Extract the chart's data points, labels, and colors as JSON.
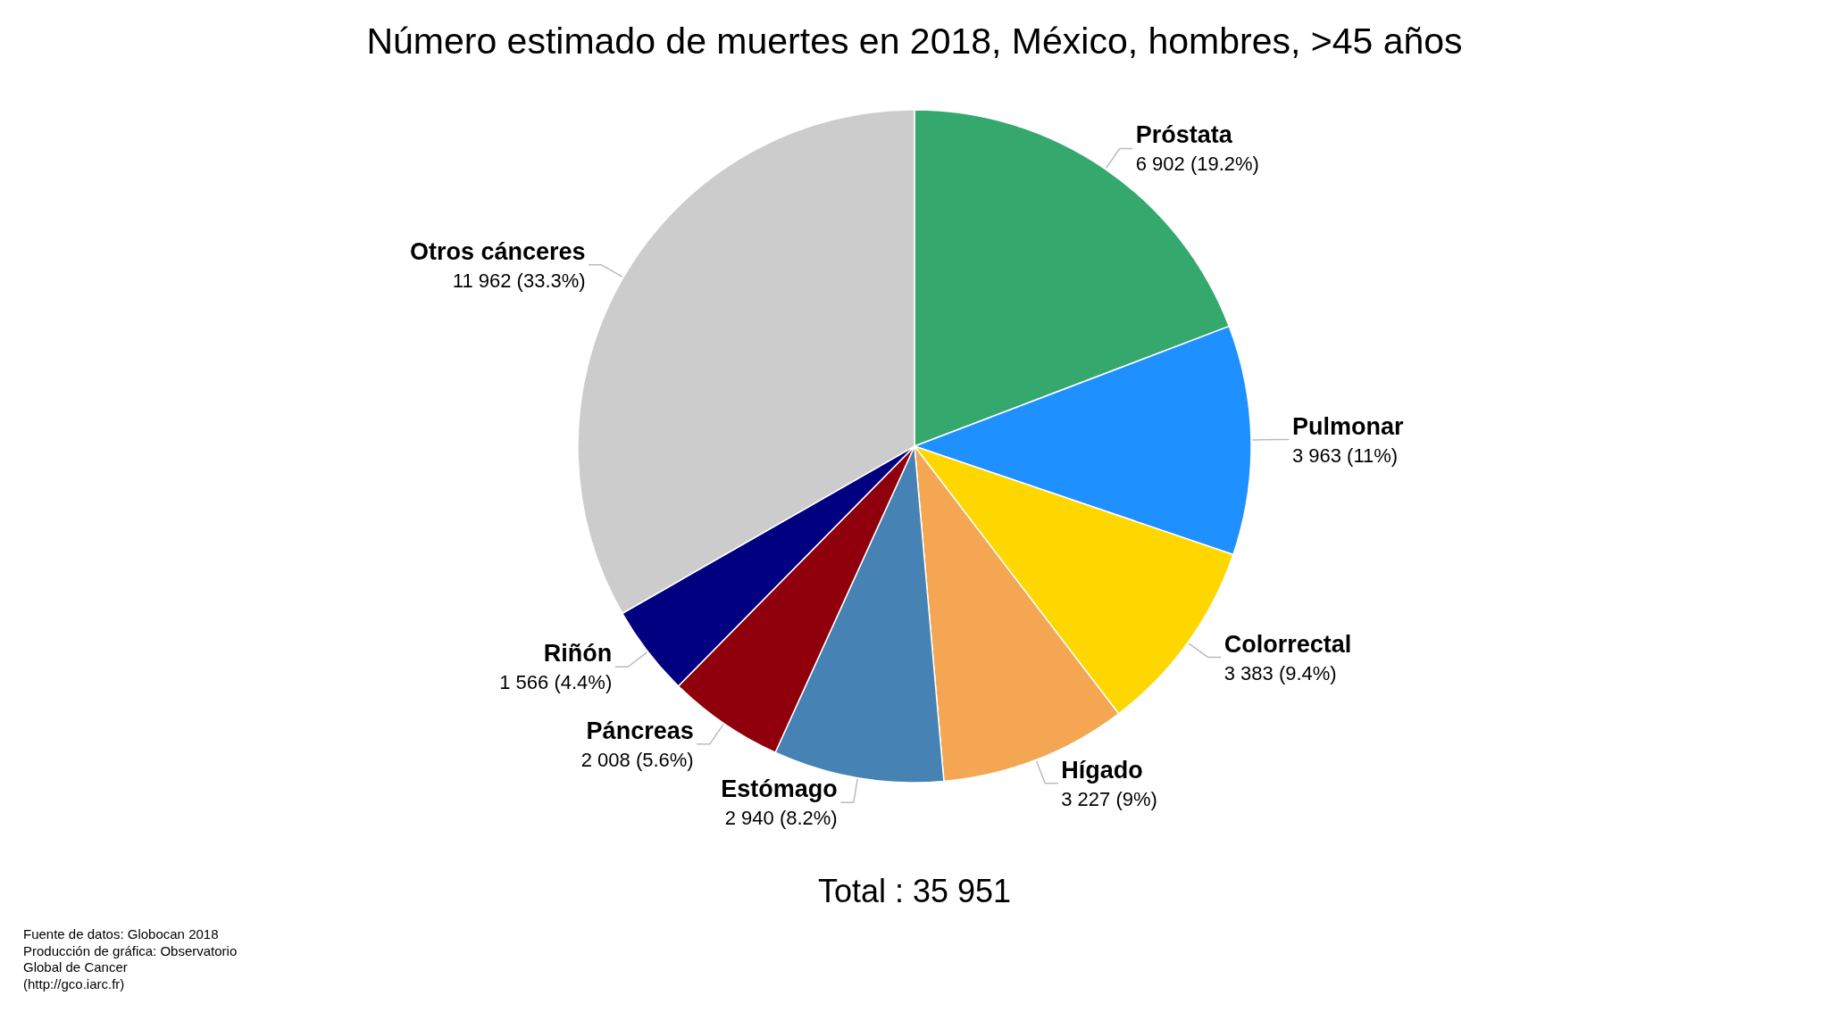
{
  "chart_data": {
    "type": "pie",
    "title": "Número estimado de muertes en 2018, México, hombres, >45 años",
    "categories": [
      "Próstata",
      "Pulmonar",
      "Colorrectal",
      "Hígado",
      "Estómago",
      "Páncreas",
      "Riñón",
      "Otros cánceres"
    ],
    "values": [
      6902,
      3963,
      3383,
      3227,
      2940,
      2008,
      1566,
      11962
    ],
    "colors": [
      "#35a86e",
      "#1e90ff",
      "#ffd700",
      "#f4a652",
      "#4682b4",
      "#90000c",
      "#000080",
      "#cccccc"
    ],
    "value_labels": [
      "6 902 (19.2%)",
      "3 963 (11%)",
      "3 383 (9.4%)",
      "3 227 (9%)",
      "2 940 (8.2%)",
      "2 008 (5.6%)",
      "1 566 (4.4%)",
      "11 962 (33.3%)"
    ],
    "annotations": [
      "Total : 35 951",
      "Fuente de datos: Globocan 2018",
      "Producción de gráfica: Observatorio Global de Cancer (http://gco.iarc.fr)"
    ]
  }
}
